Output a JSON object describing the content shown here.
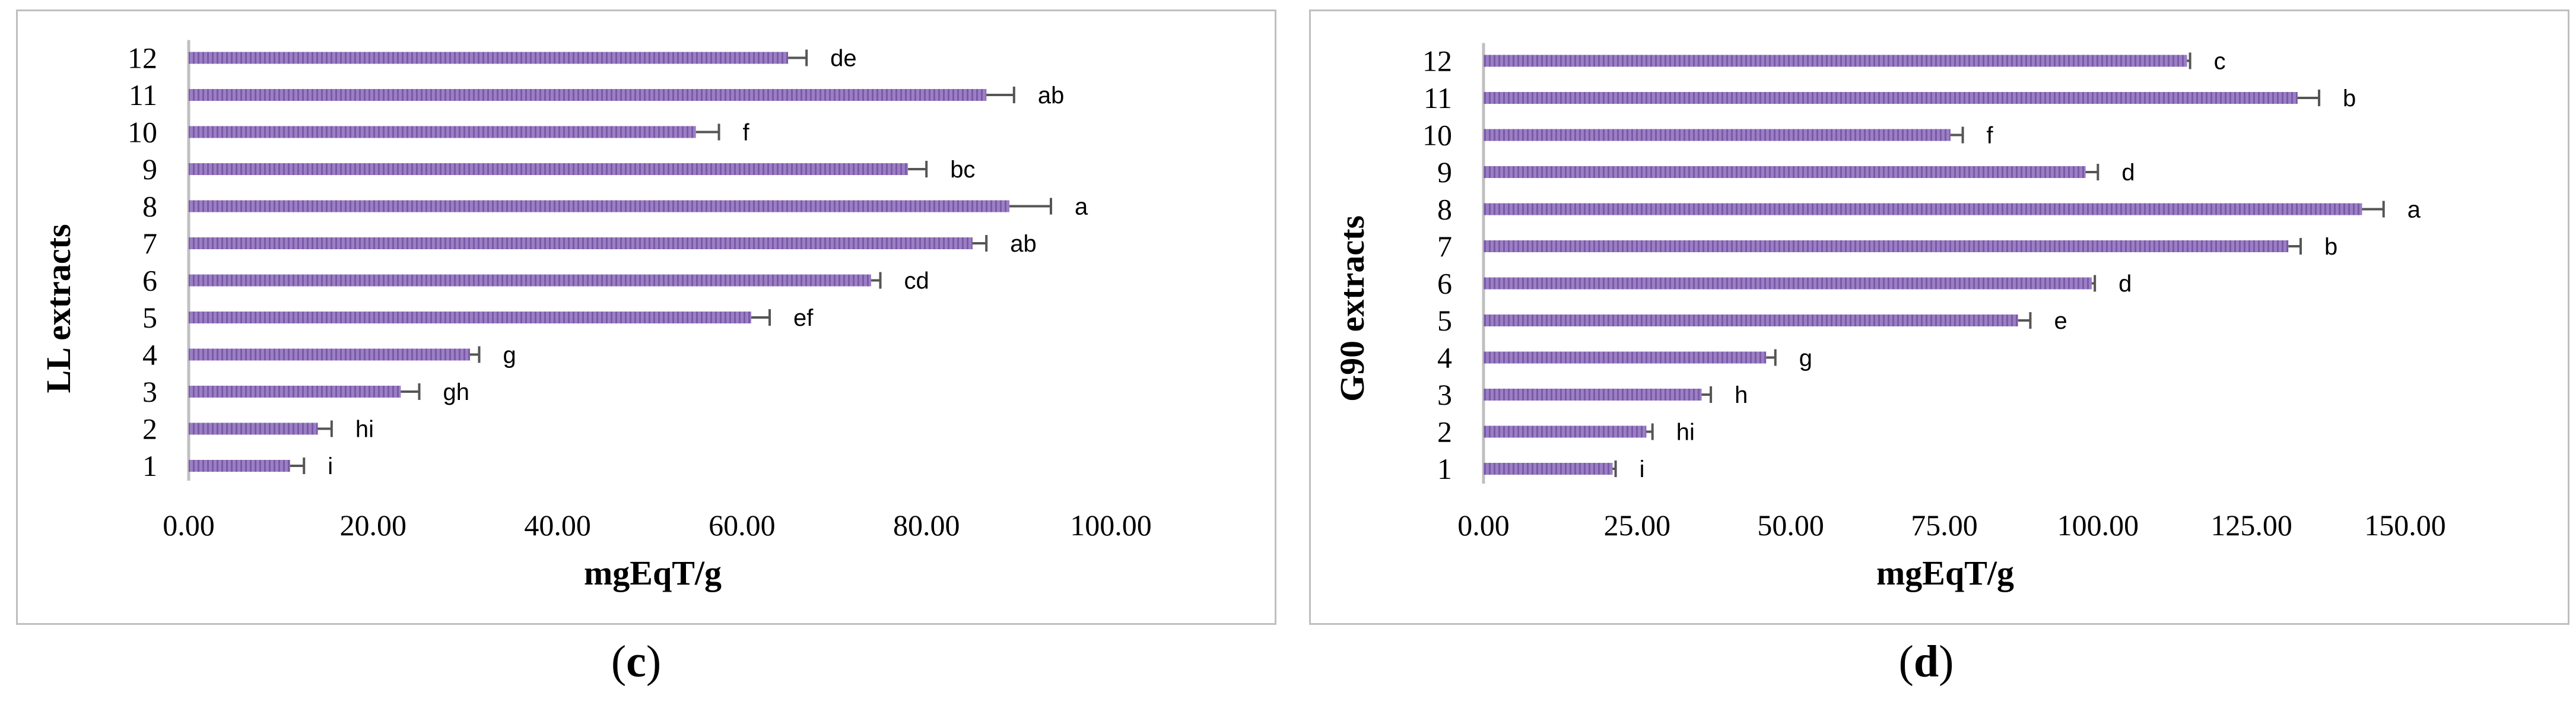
{
  "figure": {
    "panels": [
      {
        "caption": {
          "open": "(",
          "letter": "c",
          "close": ")"
        }
      },
      {
        "caption": {
          "open": "(",
          "letter": "d",
          "close": ")"
        }
      }
    ]
  },
  "chart_data": [
    {
      "type": "bar",
      "orientation": "horizontal",
      "title": "",
      "xlabel": "mgEqT/g",
      "ylabel": "LL extracts",
      "xlim": [
        0,
        100
      ],
      "x_ticks": [
        "0.00",
        "20.00",
        "40.00",
        "60.00",
        "80.00",
        "100.00"
      ],
      "categories": [
        "1",
        "2",
        "3",
        "4",
        "5",
        "6",
        "7",
        "8",
        "9",
        "10",
        "11",
        "12"
      ],
      "values": [
        11.0,
        14.0,
        23.0,
        30.5,
        61.0,
        74.0,
        85.0,
        89.0,
        78.0,
        55.0,
        86.5,
        65.0
      ],
      "errors": [
        1.5,
        1.5,
        2.0,
        1.0,
        2.0,
        1.0,
        1.5,
        4.5,
        2.0,
        2.5,
        3.0,
        2.0
      ],
      "significance_letters": [
        "i",
        "hi",
        "gh",
        "g",
        "ef",
        "cd",
        "ab",
        "a",
        "bc",
        "f",
        "ab",
        "de"
      ],
      "bar_color": "#9b7fc4",
      "grid": false,
      "legend": "none"
    },
    {
      "type": "bar",
      "orientation": "horizontal",
      "title": "",
      "xlabel": "mgEqT/g",
      "ylabel": "G90 extracts",
      "xlim": [
        0,
        150
      ],
      "x_ticks": [
        "0.00",
        "25.00",
        "50.00",
        "75.00",
        "100.00",
        "125.00",
        "150.00"
      ],
      "categories": [
        "1",
        "2",
        "3",
        "4",
        "5",
        "6",
        "7",
        "8",
        "9",
        "10",
        "11",
        "12"
      ],
      "values": [
        21.0,
        26.5,
        35.5,
        46.0,
        87.0,
        99.0,
        131.0,
        143.0,
        98.0,
        76.0,
        132.5,
        114.5
      ],
      "errors": [
        0.5,
        1.0,
        1.5,
        1.5,
        2.0,
        0.5,
        2.0,
        3.5,
        2.0,
        2.0,
        3.5,
        0.5
      ],
      "significance_letters": [
        "i",
        "hi",
        "h",
        "g",
        "e",
        "d",
        "b",
        "a",
        "d",
        "f",
        "b",
        "c"
      ],
      "bar_color": "#9b7fc4",
      "grid": false,
      "legend": "none"
    }
  ]
}
